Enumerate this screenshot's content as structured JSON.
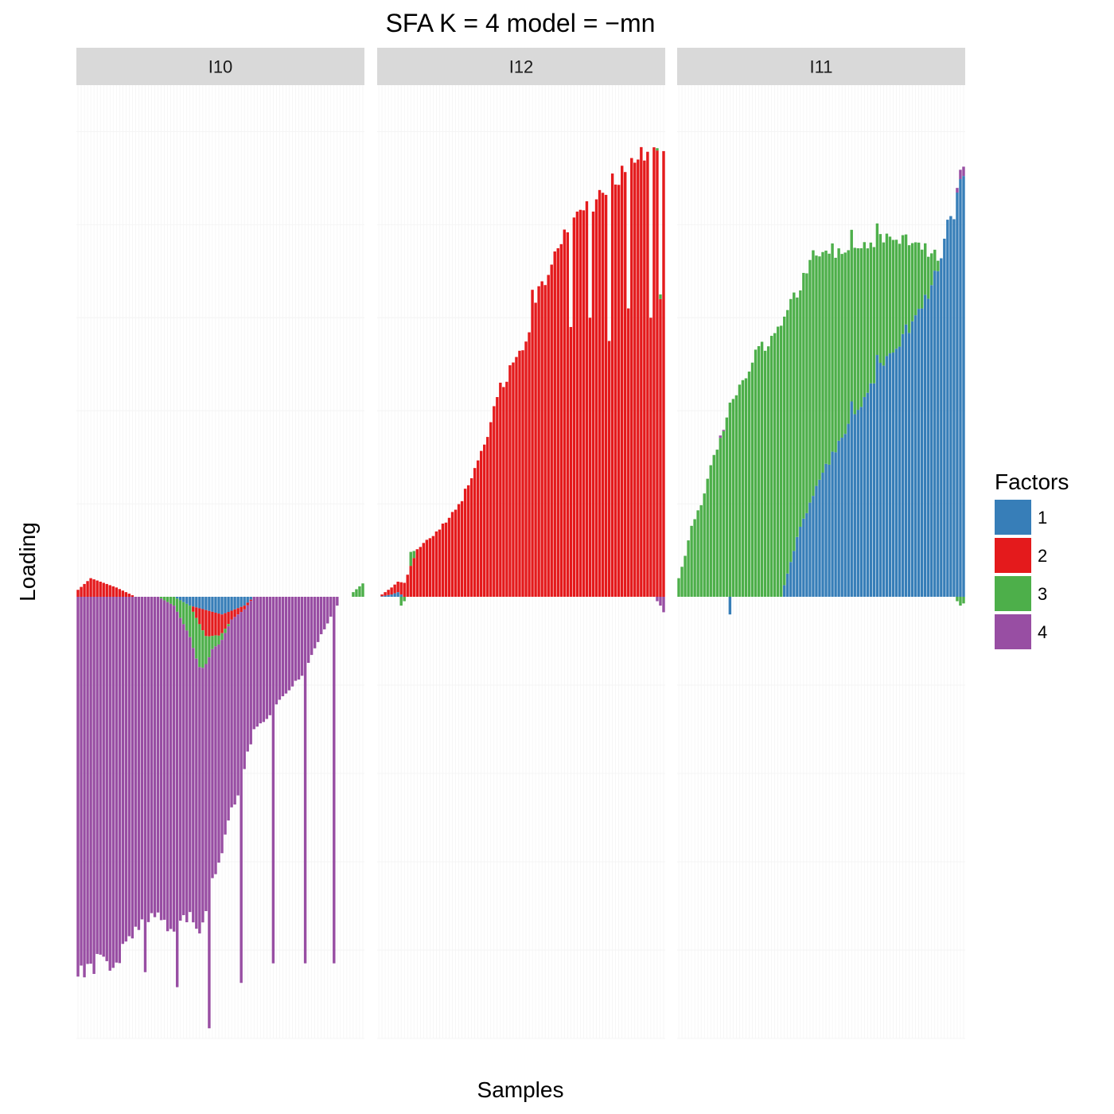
{
  "chart_data": {
    "type": "bar",
    "stacked": true,
    "title": "SFA K = 4 model =  −mn",
    "xlabel": "Samples",
    "ylabel": "Loading",
    "ylim": [
      -1.0,
      1.1
    ],
    "grid": true,
    "legend": {
      "title": "Factors",
      "position": "right",
      "entries": [
        {
          "name": "1",
          "color": "#377eb8"
        },
        {
          "name": "2",
          "color": "#e41a1c"
        },
        {
          "name": "3",
          "color": "#4daf4a"
        },
        {
          "name": "4",
          "color": "#984ea3"
        }
      ]
    },
    "panels": [
      {
        "label": "I10",
        "n_samples": 90,
        "series": [
          {
            "name": "1",
            "color": "#377eb8",
            "keyframes": [
              [
                0,
                0
              ],
              [
                30,
                0
              ],
              [
                35,
                -0.02
              ],
              [
                45,
                -0.04
              ],
              [
                52,
                -0.02
              ],
              [
                55,
                0
              ],
              [
                90,
                0
              ]
            ]
          },
          {
            "name": "2",
            "color": "#e41a1c",
            "keyframes": [
              [
                0,
                0.015
              ],
              [
                4,
                0.04
              ],
              [
                8,
                0.03
              ],
              [
                12,
                0.02
              ],
              [
                18,
                0.0
              ],
              [
                35,
                0.0
              ],
              [
                40,
                -0.06
              ],
              [
                44,
                -0.05
              ],
              [
                48,
                -0.02
              ],
              [
                55,
                0
              ],
              [
                90,
                0
              ]
            ]
          },
          {
            "name": "3",
            "color": "#4daf4a",
            "keyframes": [
              [
                0,
                0
              ],
              [
                25,
                0
              ],
              [
                30,
                -0.02
              ],
              [
                38,
                -0.1
              ],
              [
                42,
                -0.03
              ],
              [
                48,
                0
              ],
              [
                85,
                0
              ],
              [
                86,
                0.01
              ],
              [
                90,
                0.035
              ]
            ]
          },
          {
            "name": "4",
            "color": "#984ea3",
            "keyframes": [
              [
                0,
                -0.86
              ],
              [
                5,
                -0.83
              ],
              [
                10,
                -0.84
              ],
              [
                15,
                -0.79
              ],
              [
                20,
                -0.75
              ],
              [
                25,
                -0.73
              ],
              [
                30,
                -0.72
              ],
              [
                35,
                -0.63
              ],
              [
                40,
                -0.56
              ],
              [
                45,
                -0.47
              ],
              [
                50,
                -0.4
              ],
              [
                55,
                -0.3
              ],
              [
                60,
                -0.27
              ],
              [
                65,
                -0.22
              ],
              [
                70,
                -0.18
              ],
              [
                75,
                -0.1
              ],
              [
                78,
                -0.06
              ],
              [
                80,
                -0.03
              ],
              [
                81,
                -0.02
              ],
              [
                82,
                0
              ],
              [
                90,
                0
              ]
            ]
          }
        ],
        "spikes": [
          {
            "i": 0,
            "factor": "4",
            "value": -0.86
          },
          {
            "i": 21,
            "factor": "4",
            "value": -0.85
          },
          {
            "i": 31,
            "factor": "4",
            "value": -0.85
          },
          {
            "i": 41,
            "factor": "4",
            "value": -0.84
          },
          {
            "i": 51,
            "factor": "4",
            "value": -0.84
          },
          {
            "i": 61,
            "factor": "4",
            "value": -0.83
          },
          {
            "i": 71,
            "factor": "4",
            "value": -0.83
          },
          {
            "i": 80,
            "factor": "4",
            "value": -0.83
          }
        ]
      },
      {
        "label": "I12",
        "n_samples": 90,
        "series": [
          {
            "name": "1",
            "color": "#377eb8",
            "keyframes": [
              [
                0,
                0
              ],
              [
                4,
                0.005
              ],
              [
                6,
                0.01
              ],
              [
                8,
                0
              ],
              [
                90,
                0
              ]
            ]
          },
          {
            "name": "2",
            "color": "#e41a1c",
            "keyframes": [
              [
                0,
                0
              ],
              [
                8,
                0.03
              ],
              [
                12,
                0.1
              ],
              [
                18,
                0.14
              ],
              [
                22,
                0.17
              ],
              [
                26,
                0.21
              ],
              [
                30,
                0.28
              ],
              [
                33,
                0.33
              ],
              [
                36,
                0.4
              ],
              [
                38,
                0.45
              ],
              [
                40,
                0.47
              ],
              [
                43,
                0.51
              ],
              [
                46,
                0.55
              ],
              [
                49,
                0.63
              ],
              [
                52,
                0.69
              ],
              [
                56,
                0.77
              ],
              [
                60,
                0.81
              ],
              [
                65,
                0.83
              ],
              [
                70,
                0.88
              ],
              [
                75,
                0.91
              ],
              [
                80,
                0.93
              ],
              [
                84,
                0.95
              ],
              [
                87,
                0.97
              ],
              [
                90,
                0.97
              ]
            ]
          },
          {
            "name": "3",
            "color": "#4daf4a",
            "keyframes": [
              [
                0,
                0
              ],
              [
                6,
                0
              ],
              [
                7,
                -0.02
              ],
              [
                9,
                0
              ],
              [
                10,
                0.03
              ],
              [
                12,
                0
              ],
              [
                86,
                0
              ],
              [
                88,
                0.01
              ],
              [
                90,
                -0.01
              ]
            ]
          },
          {
            "name": "4",
            "color": "#984ea3",
            "keyframes": [
              [
                0,
                0
              ],
              [
                86,
                0
              ],
              [
                88,
                -0.02
              ],
              [
                90,
                -0.05
              ]
            ]
          }
        ],
        "spikes": [
          {
            "i": 72,
            "factor": "2",
            "value": 0.55
          },
          {
            "i": 78,
            "factor": "2",
            "value": 0.62
          },
          {
            "i": 85,
            "factor": "2",
            "value": 0.6
          },
          {
            "i": 88,
            "factor": "2",
            "value": 0.64
          },
          {
            "i": 60,
            "factor": "2",
            "value": 0.58
          },
          {
            "i": 66,
            "factor": "2",
            "value": 0.6
          },
          {
            "i": 48,
            "factor": "2",
            "value": 0.66
          }
        ]
      },
      {
        "label": "I11",
        "n_samples": 90,
        "series": [
          {
            "name": "1",
            "color": "#377eb8",
            "keyframes": [
              [
                0,
                0
              ],
              [
                32,
                0
              ],
              [
                34,
                0.05
              ],
              [
                38,
                0.15
              ],
              [
                42,
                0.22
              ],
              [
                46,
                0.28
              ],
              [
                50,
                0.33
              ],
              [
                54,
                0.38
              ],
              [
                58,
                0.43
              ],
              [
                62,
                0.48
              ],
              [
                66,
                0.52
              ],
              [
                70,
                0.56
              ],
              [
                74,
                0.6
              ],
              [
                78,
                0.65
              ],
              [
                81,
                0.72
              ],
              [
                84,
                0.79
              ],
              [
                87,
                0.85
              ],
              [
                90,
                0.94
              ]
            ]
          },
          {
            "name": "2",
            "color": "#e41a1c",
            "keyframes": [
              [
                0,
                0
              ],
              [
                90,
                0
              ]
            ]
          },
          {
            "name": "3",
            "color": "#4daf4a",
            "keyframes": [
              [
                0,
                0.04
              ],
              [
                2,
                0.09
              ],
              [
                4,
                0.15
              ],
              [
                7,
                0.2
              ],
              [
                10,
                0.28
              ],
              [
                14,
                0.36
              ],
              [
                17,
                0.43
              ],
              [
                20,
                0.47
              ],
              [
                24,
                0.52
              ],
              [
                28,
                0.55
              ],
              [
                32,
                0.6
              ],
              [
                35,
                0.55
              ],
              [
                38,
                0.52
              ],
              [
                42,
                0.52
              ],
              [
                46,
                0.47
              ],
              [
                50,
                0.41
              ],
              [
                54,
                0.37
              ],
              [
                58,
                0.33
              ],
              [
                62,
                0.29
              ],
              [
                66,
                0.25
              ],
              [
                70,
                0.21
              ],
              [
                74,
                0.16
              ],
              [
                78,
                0.09
              ],
              [
                82,
                0.0
              ],
              [
                86,
                0
              ],
              [
                88,
                -0.02
              ],
              [
                90,
                -0.01
              ]
            ]
          },
          {
            "name": "4",
            "color": "#984ea3",
            "keyframes": [
              [
                0,
                0
              ],
              [
                12,
                0
              ],
              [
                13,
                0.005
              ],
              [
                15,
                0
              ],
              [
                86,
                0
              ],
              [
                87,
                0.01
              ],
              [
                88,
                0.02
              ],
              [
                90,
                0.02
              ]
            ]
          }
        ],
        "spikes": [
          {
            "i": 16,
            "factor": "1",
            "value": -0.04
          },
          {
            "i": 54,
            "factor": "1",
            "value": 0.42
          },
          {
            "i": 62,
            "factor": "1",
            "value": 0.52
          },
          {
            "i": 76,
            "factor": "1",
            "value": 0.62
          }
        ]
      }
    ]
  }
}
